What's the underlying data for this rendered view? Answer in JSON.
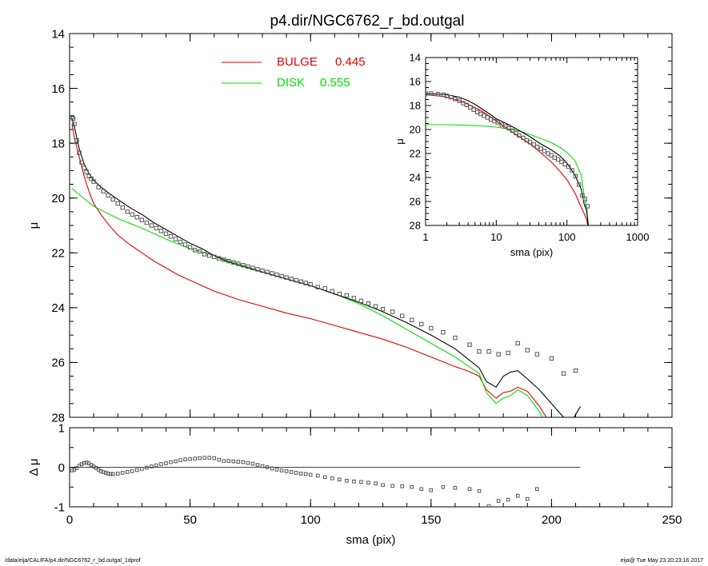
{
  "title": "p4.dir/NGC6762_r_bd.outgal",
  "footer": {
    "left": "/data/eija/CALIFA/p4.dir/NGC6762_r_bd.outgal_1dprof",
    "right": "eija@  Tue May 23 20:23:16 2017"
  },
  "legend": {
    "bulge_label": "BULGE",
    "bulge_value": "0.445",
    "disk_label": "DISK",
    "disk_value": "0.555"
  },
  "colors": {
    "bulge": "#e00000",
    "disk": "#00e000",
    "model": "#000000",
    "data": "#555555"
  },
  "chart_data": [
    {
      "id": "main",
      "type": "line",
      "xlabel": "",
      "ylabel": "μ",
      "xlim": [
        0,
        250
      ],
      "ylim": [
        28,
        14
      ],
      "yticks": [
        14,
        16,
        18,
        20,
        22,
        24,
        26,
        28
      ],
      "ytick_labels": [
        "14",
        "16",
        "18",
        "20",
        "22",
        "24",
        "26",
        "28"
      ],
      "xticks": [
        0,
        50,
        100,
        150,
        200,
        250
      ],
      "series": [
        {
          "name": "BULGE",
          "color": "#e00000",
          "x": [
            1,
            2,
            4,
            6,
            8,
            10,
            13,
            16,
            20,
            25,
            30,
            35,
            40,
            45,
            50,
            55,
            60,
            65,
            70,
            80,
            90,
            100,
            110,
            120,
            130,
            140,
            150,
            160,
            165,
            170,
            173,
            177,
            180,
            183,
            186,
            190,
            195,
            200,
            205,
            208
          ],
          "y": [
            17.3,
            17.8,
            18.5,
            19.2,
            19.75,
            20.2,
            20.6,
            20.95,
            21.35,
            21.7,
            22.0,
            22.3,
            22.55,
            22.8,
            23.0,
            23.2,
            23.4,
            23.55,
            23.7,
            23.95,
            24.2,
            24.4,
            24.65,
            24.9,
            25.15,
            25.45,
            25.8,
            26.15,
            26.3,
            26.5,
            27.0,
            27.3,
            27.1,
            27.05,
            26.9,
            27.05,
            27.6,
            28.3,
            29.0,
            29.2
          ]
        },
        {
          "name": "DISK",
          "color": "#00e000",
          "x": [
            1,
            5,
            10,
            20,
            30,
            40,
            50,
            60,
            70,
            80,
            90,
            100,
            110,
            120,
            130,
            140,
            150,
            160,
            165,
            170,
            173,
            177,
            180,
            183,
            186,
            190,
            195,
            200
          ],
          "y": [
            19.65,
            19.95,
            20.3,
            20.75,
            21.1,
            21.5,
            21.85,
            22.1,
            22.4,
            22.7,
            22.95,
            23.2,
            23.5,
            23.85,
            24.3,
            24.8,
            25.3,
            25.8,
            26.1,
            26.4,
            27.1,
            27.5,
            27.3,
            27.2,
            27.0,
            27.2,
            27.8,
            28.5
          ]
        },
        {
          "name": "",
          "color": "#000000",
          "x": [
            1,
            2,
            4,
            6,
            8,
            10,
            13,
            16,
            20,
            25,
            30,
            35,
            40,
            45,
            50,
            55,
            60,
            65,
            70,
            80,
            90,
            100,
            110,
            120,
            130,
            140,
            150,
            160,
            165,
            170,
            173,
            177,
            180,
            183,
            186,
            190,
            195,
            200,
            205,
            208,
            212
          ],
          "y": [
            17.1,
            17.4,
            18.2,
            18.75,
            19.1,
            19.35,
            19.6,
            19.8,
            20.05,
            20.35,
            20.6,
            20.9,
            21.15,
            21.4,
            21.65,
            21.85,
            22.1,
            22.3,
            22.45,
            22.7,
            22.95,
            23.2,
            23.5,
            23.8,
            24.15,
            24.55,
            25.0,
            25.5,
            25.85,
            26.2,
            26.7,
            26.9,
            26.5,
            26.35,
            26.3,
            26.6,
            27.0,
            27.5,
            28.0,
            28.2,
            27.6
          ]
        }
      ],
      "data_points": {
        "x": [
          1,
          1.5,
          2,
          3,
          4,
          5,
          6,
          7,
          8,
          9,
          10,
          12,
          14,
          16,
          18,
          20,
          22,
          24,
          26,
          28,
          30,
          32,
          34,
          36,
          38,
          40,
          42,
          44,
          46,
          48,
          50,
          52,
          54,
          56,
          58,
          60,
          62,
          64,
          66,
          68,
          70,
          72,
          74,
          76,
          78,
          80,
          82,
          84,
          86,
          88,
          90,
          92,
          94,
          96,
          98,
          100,
          103,
          106,
          109,
          112,
          115,
          118,
          121,
          124,
          127,
          130,
          134,
          138,
          142,
          146,
          150,
          155,
          160,
          166,
          170,
          174,
          178,
          182,
          186,
          190,
          194,
          200,
          205,
          210
        ],
        "y": [
          17.05,
          17.1,
          17.3,
          17.9,
          18.35,
          18.7,
          18.9,
          19.05,
          19.2,
          19.3,
          19.4,
          19.6,
          19.75,
          19.9,
          20.05,
          20.2,
          20.35,
          20.5,
          20.6,
          20.7,
          20.8,
          20.9,
          21.0,
          21.1,
          21.2,
          21.3,
          21.4,
          21.5,
          21.6,
          21.7,
          21.8,
          21.9,
          21.95,
          22.05,
          22.1,
          22.15,
          22.2,
          22.25,
          22.3,
          22.35,
          22.4,
          22.45,
          22.5,
          22.55,
          22.6,
          22.65,
          22.7,
          22.75,
          22.8,
          22.85,
          22.9,
          22.95,
          23.0,
          23.05,
          23.1,
          23.15,
          23.25,
          23.3,
          23.4,
          23.5,
          23.55,
          23.65,
          23.75,
          23.85,
          23.95,
          24.05,
          24.15,
          24.3,
          24.45,
          24.6,
          24.75,
          24.9,
          25.1,
          25.35,
          25.6,
          25.6,
          25.7,
          25.65,
          25.3,
          25.55,
          25.7,
          25.85,
          26.4,
          26.3
        ]
      }
    },
    {
      "id": "residual",
      "type": "scatter",
      "xlabel": "sma (pix)",
      "ylabel": "Δ μ",
      "xlim": [
        0,
        250
      ],
      "ylim": [
        -1,
        1
      ],
      "yticks": [
        -1,
        0,
        1
      ],
      "ytick_labels": [
        "-1",
        "0",
        "1"
      ],
      "xticks": [
        0,
        50,
        100,
        150,
        200,
        250
      ],
      "xtick_labels": [
        "0",
        "50",
        "100",
        "150",
        "200",
        "250"
      ],
      "data_points": {
        "x": [
          1,
          2,
          3,
          4,
          5,
          6,
          7,
          8,
          9,
          10,
          11,
          12,
          13,
          14,
          15,
          16,
          17,
          18,
          20,
          22,
          24,
          26,
          28,
          30,
          32,
          34,
          36,
          38,
          40,
          42,
          44,
          46,
          48,
          50,
          52,
          54,
          56,
          58,
          60,
          62,
          64,
          66,
          68,
          70,
          72,
          74,
          76,
          78,
          80,
          82,
          84,
          86,
          88,
          90,
          92,
          94,
          96,
          98,
          100,
          103,
          106,
          109,
          112,
          115,
          118,
          121,
          124,
          127,
          130,
          134,
          138,
          142,
          146,
          150,
          155,
          160,
          166,
          170,
          174,
          178,
          182,
          186,
          190,
          194
        ],
        "y": [
          -0.08,
          -0.06,
          -0.02,
          0.04,
          0.08,
          0.11,
          0.12,
          0.1,
          0.06,
          0.02,
          -0.02,
          -0.06,
          -0.1,
          -0.12,
          -0.14,
          -0.16,
          -0.17,
          -0.17,
          -0.16,
          -0.14,
          -0.12,
          -0.1,
          -0.07,
          -0.04,
          -0.01,
          0.02,
          0.05,
          0.08,
          0.1,
          0.13,
          0.15,
          0.18,
          0.2,
          0.21,
          0.22,
          0.23,
          0.24,
          0.24,
          0.23,
          0.19,
          0.16,
          0.16,
          0.15,
          0.14,
          0.13,
          0.11,
          0.09,
          0.06,
          0.03,
          0.0,
          -0.03,
          -0.06,
          -0.08,
          -0.1,
          -0.12,
          -0.14,
          -0.16,
          -0.17,
          -0.19,
          -0.21,
          -0.25,
          -0.28,
          -0.31,
          -0.34,
          -0.36,
          -0.37,
          -0.39,
          -0.41,
          -0.45,
          -0.47,
          -0.48,
          -0.5,
          -0.55,
          -0.58,
          -0.5,
          -0.52,
          -0.55,
          -0.6,
          -0.98,
          -0.85,
          -0.82,
          -0.72,
          -0.8,
          -0.55
        ]
      },
      "zero_line": {
        "x": [
          0,
          212
        ],
        "y": [
          0,
          0
        ]
      }
    },
    {
      "id": "inset",
      "type": "line",
      "xlabel": "sma (pix)",
      "ylabel": "μ",
      "xscale": "log",
      "xlim": [
        1,
        1000
      ],
      "ylim": [
        28,
        14
      ],
      "yticks": [
        14,
        16,
        18,
        20,
        22,
        24,
        26,
        28
      ],
      "ytick_labels": [
        "14",
        "16",
        "18",
        "20",
        "22",
        "24",
        "26",
        "28"
      ],
      "xticks": [
        1,
        10,
        100,
        1000
      ],
      "xtick_labels": [
        "1",
        "10",
        "100",
        "1000"
      ],
      "series": [
        {
          "name": "BULGE",
          "color": "#e00000",
          "x": [
            1,
            1.5,
            2,
            3,
            4,
            6,
            8,
            10,
            15,
            20,
            30,
            40,
            60,
            80,
            100,
            130,
            160,
            175,
            190,
            200
          ],
          "y": [
            17.1,
            17.2,
            17.3,
            17.6,
            17.9,
            18.4,
            18.9,
            19.3,
            20.0,
            20.5,
            21.2,
            21.8,
            22.7,
            23.5,
            24.2,
            25.3,
            26.5,
            27.0,
            27.5,
            28.2
          ]
        },
        {
          "name": "DISK",
          "color": "#00e000",
          "x": [
            1,
            2,
            4,
            6,
            8,
            10,
            15,
            20,
            30,
            40,
            50,
            60,
            80,
            100,
            130,
            160,
            175,
            190,
            200
          ],
          "y": [
            19.6,
            19.6,
            19.65,
            19.7,
            19.75,
            19.8,
            19.95,
            20.1,
            20.4,
            20.7,
            20.9,
            21.1,
            21.5,
            21.9,
            22.6,
            23.8,
            25.5,
            26.5,
            27.8
          ]
        },
        {
          "name": "",
          "color": "#000000",
          "x": [
            1,
            1.5,
            2,
            3,
            4,
            5,
            6,
            8,
            10,
            15,
            20,
            30,
            40,
            60,
            80,
            100,
            130,
            160,
            175,
            190,
            200
          ],
          "y": [
            17.0,
            17.05,
            17.1,
            17.3,
            17.6,
            17.9,
            18.2,
            18.7,
            19.1,
            19.6,
            20.0,
            20.6,
            21.1,
            21.7,
            22.2,
            22.8,
            23.8,
            25.0,
            26.2,
            26.8,
            28.0
          ]
        }
      ],
      "data_points": {
        "x": [
          1,
          1.2,
          1.5,
          1.8,
          2,
          2.3,
          2.6,
          3,
          3.4,
          3.8,
          4.3,
          4.8,
          5.4,
          6,
          6.7,
          7.5,
          8.4,
          9.4,
          10.5,
          12,
          13.5,
          15,
          17,
          19,
          21,
          24,
          27,
          30,
          34,
          38,
          43,
          48,
          54,
          60,
          67,
          75,
          84,
          94,
          105,
          118,
          132,
          148,
          165,
          180,
          195
        ],
        "y": [
          17.0,
          17.0,
          17.05,
          17.1,
          17.2,
          17.3,
          17.45,
          17.6,
          17.8,
          17.95,
          18.15,
          18.35,
          18.55,
          18.7,
          18.85,
          19.0,
          19.15,
          19.3,
          19.4,
          19.6,
          19.75,
          19.9,
          20.1,
          20.3,
          20.5,
          20.7,
          20.9,
          21.05,
          21.25,
          21.45,
          21.6,
          21.8,
          22.0,
          22.15,
          22.35,
          22.5,
          22.7,
          22.9,
          23.1,
          23.4,
          23.9,
          24.6,
          25.5,
          25.8,
          26.4
        ]
      }
    }
  ]
}
